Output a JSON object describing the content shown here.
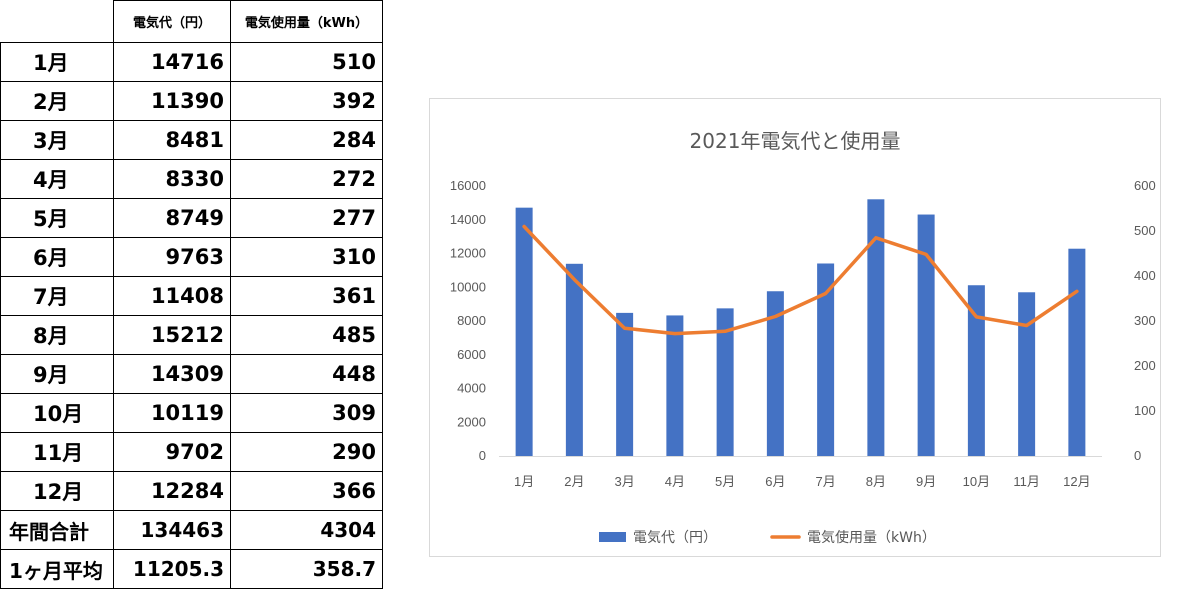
{
  "table": {
    "headers": [
      "",
      "電気代（円）",
      "電気使用量（kWh）"
    ],
    "rows": [
      {
        "label": "1月",
        "cost": "14716",
        "usage": "510"
      },
      {
        "label": "2月",
        "cost": "11390",
        "usage": "392"
      },
      {
        "label": "3月",
        "cost": "8481",
        "usage": "284"
      },
      {
        "label": "4月",
        "cost": "8330",
        "usage": "272"
      },
      {
        "label": "5月",
        "cost": "8749",
        "usage": "277"
      },
      {
        "label": "6月",
        "cost": "9763",
        "usage": "310"
      },
      {
        "label": "7月",
        "cost": "11408",
        "usage": "361"
      },
      {
        "label": "8月",
        "cost": "15212",
        "usage": "485"
      },
      {
        "label": "9月",
        "cost": "14309",
        "usage": "448"
      },
      {
        "label": "10月",
        "cost": "10119",
        "usage": "309"
      },
      {
        "label": "11月",
        "cost": "9702",
        "usage": "290"
      },
      {
        "label": "12月",
        "cost": "12284",
        "usage": "366"
      }
    ],
    "totals": [
      {
        "label": "年間合計",
        "cost": "134463",
        "usage": "4304"
      },
      {
        "label": "1ヶ月平均",
        "cost": "11205.3",
        "usage": "358.7"
      }
    ]
  },
  "chart_data": {
    "type": "bar",
    "title": "2021年電気代と使用量",
    "categories": [
      "1月",
      "2月",
      "3月",
      "4月",
      "5月",
      "6月",
      "7月",
      "8月",
      "9月",
      "10月",
      "11月",
      "12月"
    ],
    "series": [
      {
        "name": "電気代（円）",
        "type": "bar",
        "axis": "left",
        "color": "#4472C4",
        "values": [
          14716,
          11390,
          8481,
          8330,
          8749,
          9763,
          11408,
          15212,
          14309,
          10119,
          9702,
          12284
        ]
      },
      {
        "name": "電気使用量（kWh）",
        "type": "line",
        "axis": "right",
        "color": "#ED7D31",
        "values": [
          510,
          392,
          284,
          272,
          277,
          310,
          361,
          485,
          448,
          309,
          290,
          366
        ]
      }
    ],
    "y_left": {
      "range": [
        0,
        16000
      ],
      "ticks": [
        "0",
        "2000",
        "4000",
        "6000",
        "8000",
        "10000",
        "12000",
        "14000",
        "16000"
      ]
    },
    "y_right": {
      "range": [
        0,
        600
      ],
      "ticks": [
        "0",
        "100",
        "200",
        "300",
        "400",
        "500",
        "600"
      ]
    },
    "grid": false,
    "legend": "bottom"
  }
}
